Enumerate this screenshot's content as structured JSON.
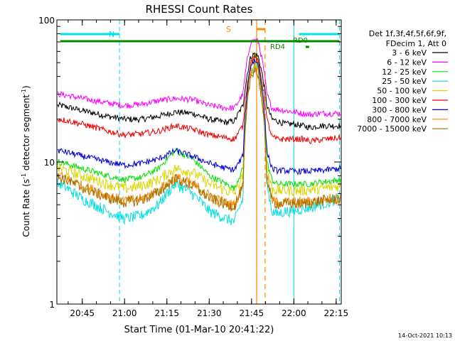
{
  "chart_data": {
    "type": "line",
    "title": "RHESSI Count Rates",
    "xlabel": "Start Time (01-Mar-10 20:41:22)",
    "ylabel": "Count Rate (s",
    "ylabel_sup1": "-1",
    "ylabel_mid": " detector segment",
    "ylabel_sup2": "-1",
    "ylabel_end": ")",
    "y_scale": "log",
    "ylim": [
      1,
      100
    ],
    "xlim_minutes": [
      20.6,
      22.28
    ],
    "x_ticks": [
      {
        "label": "20:45",
        "t": 20.75
      },
      {
        "label": "21:00",
        "t": 21.0
      },
      {
        "label": "21:15",
        "t": 21.25
      },
      {
        "label": "21:30",
        "t": 21.5
      },
      {
        "label": "21:45",
        "t": 21.75
      },
      {
        "label": "22:00",
        "t": 22.0
      },
      {
        "label": "22:15",
        "t": 22.25
      }
    ],
    "y_ticks": [
      {
        "label": "1",
        "v": 1
      },
      {
        "label": "10",
        "v": 10
      },
      {
        "label": "100",
        "v": 100
      }
    ],
    "legend_header": [
      "Det 1f,3f,4f,5f,6f,9f,",
      "FDecim 1, Att 0"
    ],
    "legend_position": "right",
    "series": [
      {
        "name": "3 - 6 keV",
        "color": "#000000",
        "x": [
          20.62,
          20.75,
          20.9,
          21.0,
          21.1,
          21.2,
          21.3,
          21.4,
          21.5,
          21.6,
          21.65,
          21.7,
          21.745,
          21.77,
          21.79,
          21.84,
          21.87,
          21.9,
          21.95,
          22.0,
          22.05,
          22.1,
          22.15,
          22.2,
          22.27
        ],
        "y": [
          25,
          23,
          21,
          20,
          20,
          21,
          22.5,
          22,
          20,
          19,
          19.5,
          25,
          55,
          58,
          55,
          25,
          20,
          19.5,
          18.5,
          18.5,
          18,
          17.5,
          18,
          18,
          18
        ]
      },
      {
        "name": "6 - 12 keV",
        "color": "#ff00ff",
        "x": [
          20.62,
          20.75,
          20.9,
          21.0,
          21.1,
          21.2,
          21.3,
          21.4,
          21.5,
          21.6,
          21.65,
          21.7,
          21.745,
          21.77,
          21.79,
          21.84,
          21.87,
          21.9,
          21.95,
          22.0,
          22.05,
          22.1,
          22.15,
          22.2,
          22.27
        ],
        "y": [
          30,
          28,
          26,
          25,
          25.5,
          27,
          28,
          27.5,
          25,
          24,
          24,
          30,
          70,
          72,
          70,
          30,
          24,
          23.5,
          23,
          22.5,
          22,
          21.5,
          22,
          22,
          22
        ]
      },
      {
        "name": "12 - 25 keV",
        "color": "#00e000",
        "x": [
          20.62,
          20.75,
          20.9,
          21.0,
          21.1,
          21.2,
          21.3,
          21.4,
          21.5,
          21.6,
          21.65,
          21.7,
          21.745,
          21.77,
          21.79,
          21.84,
          21.87,
          21.9,
          21.95,
          22.0,
          22.05,
          22.1,
          22.15,
          22.2,
          22.27
        ],
        "y": [
          10,
          9,
          8,
          7.5,
          7.8,
          9,
          12,
          10.5,
          8,
          7,
          6.5,
          9,
          50,
          55,
          50,
          10,
          7.5,
          7,
          7,
          7,
          7,
          7,
          7.2,
          7.3,
          7.5
        ]
      },
      {
        "name": "25 - 50 keV",
        "color": "#00e0e0",
        "x": [
          20.62,
          20.75,
          20.9,
          21.0,
          21.1,
          21.2,
          21.3,
          21.4,
          21.5,
          21.6,
          21.65,
          21.7,
          21.745,
          21.77,
          21.79,
          21.84,
          21.87,
          21.9,
          21.95,
          22.0,
          22.05,
          22.1,
          22.15,
          22.2,
          22.27
        ],
        "y": [
          7,
          5.5,
          4.5,
          4,
          4.2,
          5,
          7,
          6,
          4.5,
          4,
          3.8,
          5.5,
          45,
          50,
          45,
          7,
          4.5,
          4.3,
          4.5,
          4.5,
          4.7,
          4.8,
          5,
          5.2,
          5.5
        ]
      },
      {
        "name": "50 - 100 keV",
        "color": "#d8d800",
        "x": [
          20.62,
          20.75,
          20.9,
          21.0,
          21.1,
          21.2,
          21.3,
          21.4,
          21.5,
          21.6,
          21.65,
          21.7,
          21.745,
          21.77,
          21.79,
          21.84,
          21.87,
          21.9,
          21.95,
          22.0,
          22.05,
          22.1,
          22.15,
          22.2,
          22.27
        ],
        "y": [
          9,
          8,
          7,
          6.5,
          6.8,
          7.5,
          9,
          8.5,
          7,
          6.3,
          6,
          8,
          45,
          50,
          45,
          9,
          6.5,
          6.3,
          6.3,
          6.3,
          6.3,
          6.4,
          6.5,
          6.6,
          6.8
        ]
      },
      {
        "name": "100 - 300 keV",
        "color": "#ee0000",
        "x": [
          20.62,
          20.75,
          20.9,
          21.0,
          21.1,
          21.2,
          21.3,
          21.4,
          21.5,
          21.6,
          21.65,
          21.7,
          21.745,
          21.77,
          21.79,
          21.84,
          21.87,
          21.9,
          21.95,
          22.0,
          22.05,
          22.1,
          22.15,
          22.2,
          22.27
        ],
        "y": [
          20,
          18.5,
          16.5,
          15.5,
          15.8,
          16.5,
          18,
          17,
          15.5,
          14.8,
          14.5,
          18,
          50,
          55,
          50,
          20,
          15,
          14.5,
          14.5,
          14.5,
          14.5,
          14,
          14.3,
          14.5,
          14.8
        ]
      },
      {
        "name": "300 - 800 keV",
        "color": "#0000dd",
        "x": [
          20.62,
          20.75,
          20.9,
          21.0,
          21.1,
          21.2,
          21.3,
          21.4,
          21.5,
          21.6,
          21.65,
          21.7,
          21.745,
          21.77,
          21.79,
          21.84,
          21.87,
          21.9,
          21.95,
          22.0,
          22.05,
          22.1,
          22.15,
          22.2,
          22.27
        ],
        "y": [
          12,
          11,
          10,
          9.5,
          9.8,
          10.5,
          12,
          11,
          9.8,
          9,
          8.8,
          11,
          48,
          52,
          48,
          12,
          9,
          8.7,
          8.7,
          8.6,
          8.6,
          8.6,
          8.7,
          8.8,
          9
        ]
      },
      {
        "name": "800 - 7000 keV",
        "color": "#ff8800",
        "x": [
          20.62,
          20.75,
          20.9,
          21.0,
          21.1,
          21.2,
          21.3,
          21.4,
          21.5,
          21.6,
          21.65,
          21.7,
          21.745,
          21.77,
          21.79,
          21.84,
          21.87,
          21.9,
          21.95,
          22.0,
          22.05,
          22.1,
          22.15,
          22.2,
          22.27
        ],
        "y": [
          8,
          6.8,
          5.8,
          5.3,
          5.5,
          6.3,
          7.8,
          7,
          5.8,
          5.1,
          5,
          6.8,
          42,
          48,
          42,
          8,
          5.4,
          5.2,
          5.2,
          5.2,
          5.2,
          5.3,
          5.4,
          5.5,
          5.6
        ]
      },
      {
        "name": "7000 - 15000 keV",
        "color": "#a07000",
        "x": [
          20.62,
          20.75,
          20.9,
          21.0,
          21.1,
          21.2,
          21.3,
          21.4,
          21.5,
          21.6,
          21.65,
          21.7,
          21.745,
          21.77,
          21.79,
          21.84,
          21.87,
          21.9,
          21.95,
          22.0,
          22.05,
          22.1,
          22.15,
          22.2,
          22.27
        ],
        "y": [
          7.8,
          6.6,
          5.6,
          5.2,
          5.4,
          6.1,
          7.6,
          6.8,
          5.6,
          5,
          4.9,
          6.6,
          40,
          46,
          40,
          7.8,
          5.3,
          5.1,
          5.1,
          5.1,
          5.1,
          5.2,
          5.3,
          5.4,
          5.5
        ]
      }
    ],
    "annotations": {
      "n_label": "N",
      "s_label": "S",
      "rd0_label": "RD0",
      "rd4_label": "RD4",
      "night_bars": [
        [
          20.62,
          20.97
        ],
        [
          22.03,
          22.27
        ]
      ],
      "saa_bar": [
        21.78,
        21.83
      ],
      "rd0_bar": [
        20.62,
        22.27
      ],
      "rd4_bar": [
        22.07,
        22.09
      ],
      "cyan_dashed": [
        20.97,
        22.27
      ],
      "cyan_solid": [
        22.0
      ],
      "orange_solid": [
        21.78
      ],
      "orange_dashed": [
        21.83
      ],
      "colors": {
        "night": "#00e0e0",
        "saa": "#ff8800",
        "decim": "#008800"
      }
    }
  },
  "footer": {
    "timestamp": "14-Oct-2021 10:13"
  }
}
